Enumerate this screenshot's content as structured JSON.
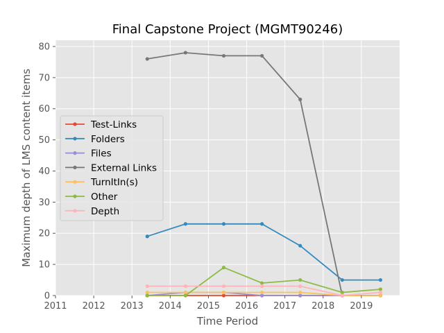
{
  "chart_data": {
    "type": "line",
    "title": "Final Capstone Project (MGMT90246)",
    "xlabel": "Time Period",
    "ylabel": "Maximum depth of LMS content items",
    "xlim": [
      2011,
      2020
    ],
    "ylim": [
      0,
      82
    ],
    "xticks": [
      2011,
      2012,
      2013,
      2014,
      2015,
      2016,
      2017,
      2018,
      2019
    ],
    "yticks": [
      0,
      10,
      20,
      30,
      40,
      50,
      60,
      70,
      80
    ],
    "grid": true,
    "legend_position": "center-left",
    "x": [
      2013.4,
      2014.4,
      2015.4,
      2016.4,
      2017.4,
      2018.5,
      2019.5
    ],
    "series": [
      {
        "name": "Test-Links",
        "color": "#E24A33",
        "values": [
          0,
          0,
          0,
          0,
          0,
          0,
          0
        ]
      },
      {
        "name": "Folders",
        "color": "#348ABD",
        "values": [
          19,
          23,
          23,
          23,
          16,
          5,
          5
        ]
      },
      {
        "name": "Files",
        "color": "#988ED5",
        "values": [
          0,
          1,
          1,
          0,
          0,
          0,
          0
        ]
      },
      {
        "name": "External Links",
        "color": "#777777",
        "values": [
          76,
          78,
          77,
          77,
          63,
          0,
          0
        ]
      },
      {
        "name": "TurnItIn(s)",
        "color": "#FBC15E",
        "values": [
          1,
          1,
          1,
          1,
          1,
          0,
          0
        ]
      },
      {
        "name": "Other",
        "color": "#8EBA42",
        "values": [
          0,
          0,
          9,
          4,
          5,
          1,
          2
        ]
      },
      {
        "name": "Depth",
        "color": "#FFB5B8",
        "values": [
          3,
          3,
          3,
          3,
          3,
          0,
          1
        ]
      }
    ]
  }
}
